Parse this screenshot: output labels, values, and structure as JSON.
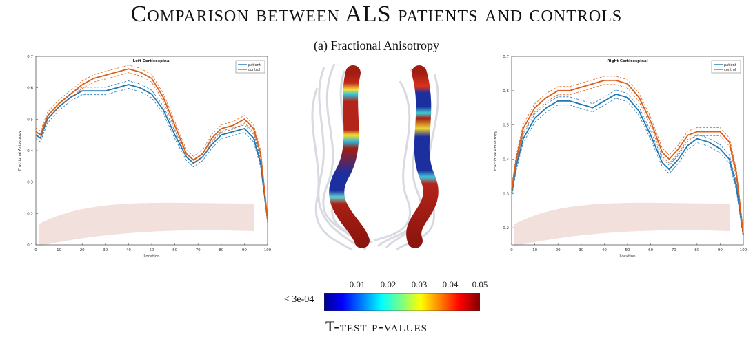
{
  "figure": {
    "title": "Comparison between ALS patients and controls",
    "subtitle": "(a) Fractional Anisotropy"
  },
  "colorbar": {
    "label_left": "< 3e-04",
    "ticks": [
      "0.01",
      "0.02",
      "0.03",
      "0.04",
      "0.05"
    ],
    "title": "T-test p-values"
  },
  "colors": {
    "patient": "#1f77b4",
    "control": "#d95f1a",
    "tract": "#b0281a"
  },
  "chart_data": [
    {
      "type": "line",
      "title": "Left Corticospinal",
      "xlabel": "Location",
      "ylabel": "Fractional Anisotropy",
      "xlim": [
        0,
        100
      ],
      "ylim": [
        0.1,
        0.7
      ],
      "xticks": [
        "0",
        "10",
        "20",
        "30",
        "40",
        "50",
        "60",
        "70",
        "80",
        "90",
        "100"
      ],
      "yticks": [
        "0.1",
        "0.2",
        "0.3",
        "0.4",
        "0.5",
        "0.6",
        "0.7"
      ],
      "legend": "top-right",
      "x": [
        0,
        2,
        5,
        10,
        15,
        20,
        25,
        30,
        35,
        40,
        45,
        50,
        55,
        60,
        65,
        68,
        72,
        76,
        80,
        85,
        90,
        94,
        97,
        100
      ],
      "series": [
        {
          "name": "patient",
          "values": [
            0.45,
            0.44,
            0.5,
            0.54,
            0.57,
            0.59,
            0.59,
            0.59,
            0.6,
            0.61,
            0.6,
            0.58,
            0.53,
            0.45,
            0.38,
            0.36,
            0.38,
            0.42,
            0.45,
            0.46,
            0.47,
            0.44,
            0.36,
            0.18
          ],
          "band": 0.012
        },
        {
          "name": "control",
          "values": [
            0.46,
            0.45,
            0.51,
            0.55,
            0.58,
            0.61,
            0.63,
            0.64,
            0.65,
            0.66,
            0.65,
            0.63,
            0.57,
            0.48,
            0.39,
            0.37,
            0.39,
            0.44,
            0.47,
            0.48,
            0.5,
            0.47,
            0.39,
            0.18
          ],
          "band": 0.012
        }
      ]
    },
    {
      "type": "line",
      "title": "Right Corticospinal",
      "xlabel": "Location",
      "ylabel": "Fractional Anisotropy",
      "xlim": [
        0,
        100
      ],
      "ylim": [
        0.15,
        0.7
      ],
      "xticks": [
        "0",
        "10",
        "20",
        "30",
        "40",
        "50",
        "60",
        "70",
        "80",
        "90",
        "100"
      ],
      "yticks": [
        "0.2",
        "0.3",
        "0.4",
        "0.5",
        "0.6",
        "0.7"
      ],
      "legend": "top-right",
      "x": [
        0,
        2,
        5,
        10,
        15,
        20,
        25,
        30,
        35,
        40,
        45,
        50,
        55,
        60,
        65,
        68,
        72,
        76,
        80,
        85,
        90,
        94,
        97,
        100
      ],
      "series": [
        {
          "name": "patient",
          "values": [
            0.3,
            0.38,
            0.46,
            0.52,
            0.55,
            0.57,
            0.57,
            0.56,
            0.55,
            0.57,
            0.59,
            0.58,
            0.54,
            0.47,
            0.39,
            0.37,
            0.4,
            0.44,
            0.46,
            0.45,
            0.43,
            0.4,
            0.32,
            0.18
          ],
          "band": 0.012
        },
        {
          "name": "control",
          "values": [
            0.31,
            0.4,
            0.49,
            0.55,
            0.58,
            0.6,
            0.6,
            0.61,
            0.62,
            0.63,
            0.63,
            0.62,
            0.58,
            0.51,
            0.42,
            0.4,
            0.43,
            0.47,
            0.48,
            0.48,
            0.48,
            0.45,
            0.36,
            0.18
          ],
          "band": 0.012
        }
      ]
    }
  ]
}
